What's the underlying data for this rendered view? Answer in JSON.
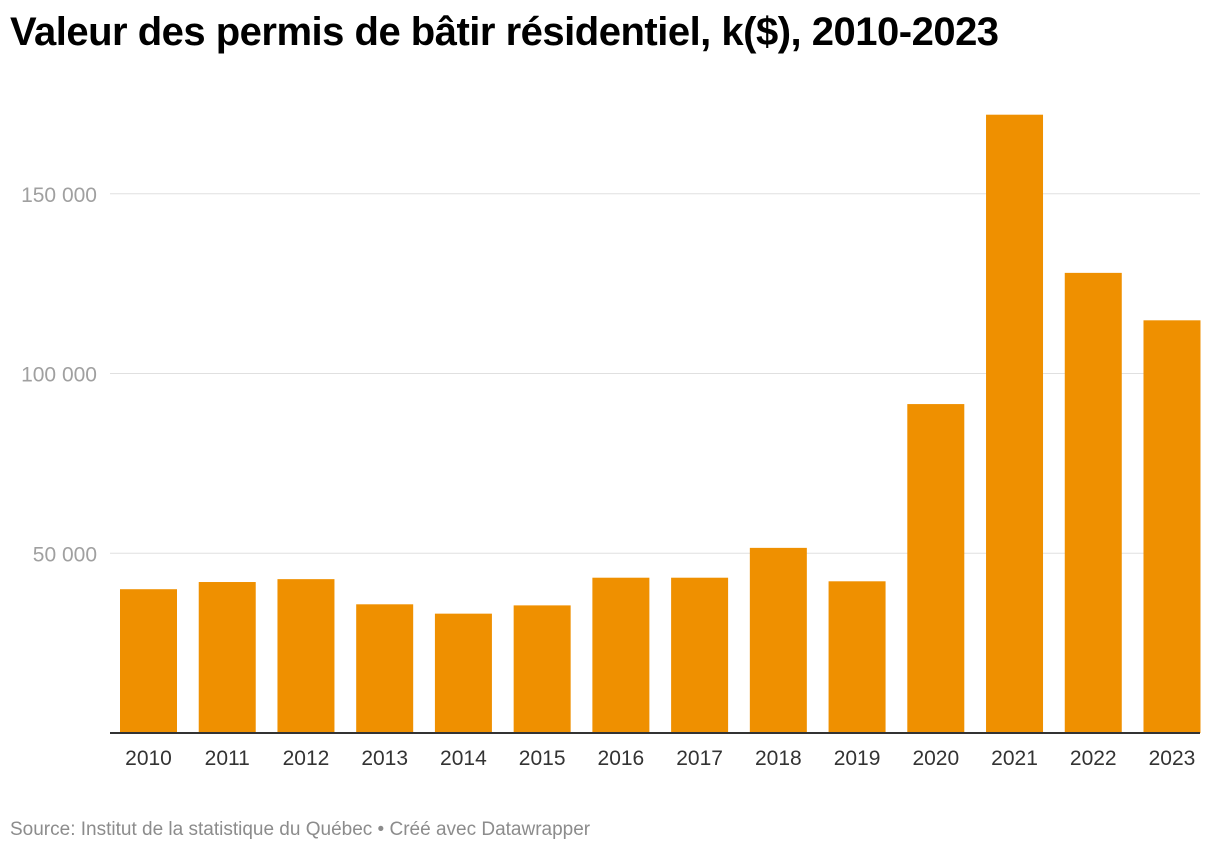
{
  "title": "Valeur des permis de bâtir résidentiel, k($), 2010-2023",
  "source": "Source: Institut de la statistique du Québec • Créé avec Datawrapper",
  "colors": {
    "bar": "#ef9000",
    "grid": "#e0e0e0",
    "axis": "#333333",
    "ytick": "#a0a0a0",
    "xtick": "#333333"
  },
  "chart_data": {
    "type": "bar",
    "title": "Valeur des permis de bâtir résidentiel, k($), 2010-2023",
    "xlabel": "",
    "ylabel": "",
    "categories": [
      "2010",
      "2011",
      "2012",
      "2013",
      "2014",
      "2015",
      "2016",
      "2017",
      "2018",
      "2019",
      "2020",
      "2021",
      "2022",
      "2023"
    ],
    "values": [
      40000,
      42000,
      42800,
      35800,
      33200,
      35500,
      43200,
      43200,
      51500,
      42200,
      91500,
      172000,
      128000,
      114800
    ],
    "ylim": [
      0,
      175000
    ],
    "yticks": [
      50000,
      100000,
      150000
    ],
    "ytick_labels": [
      "50 000",
      "100 000",
      "150 000"
    ],
    "grid": true,
    "legend": "none"
  }
}
